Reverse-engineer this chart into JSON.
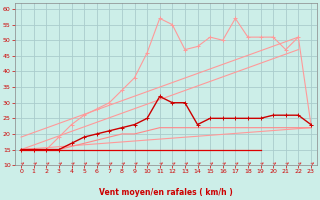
{
  "bg_color": "#cceee8",
  "grid_color": "#aacccc",
  "xlabel": "Vent moyen/en rafales ( km/h )",
  "ylim": [
    10,
    62
  ],
  "xlim": [
    -0.5,
    23.5
  ],
  "yticks": [
    10,
    15,
    20,
    25,
    30,
    35,
    40,
    45,
    50,
    55,
    60
  ],
  "xticks": [
    0,
    1,
    2,
    3,
    4,
    5,
    6,
    7,
    8,
    9,
    10,
    11,
    12,
    13,
    14,
    15,
    16,
    17,
    18,
    19,
    20,
    21,
    22,
    23
  ],
  "line_flat_red": {
    "x": [
      0,
      19
    ],
    "y": [
      15,
      15
    ],
    "color": "#dd0000",
    "lw": 0.9
  },
  "line_diag1": {
    "x": [
      0,
      23
    ],
    "y": [
      15,
      22
    ],
    "color": "#ff9999",
    "lw": 0.8
  },
  "line_diag2": {
    "x": [
      0,
      22
    ],
    "y": [
      15,
      47
    ],
    "color": "#ff9999",
    "lw": 0.8
  },
  "line_diag3": {
    "x": [
      0,
      22
    ],
    "y": [
      19,
      51
    ],
    "color": "#ff9999",
    "lw": 0.8
  },
  "line_jagged_pink": {
    "x": [
      0,
      1,
      2,
      3,
      4,
      5,
      6,
      7,
      8,
      9,
      10,
      11,
      12,
      13,
      14,
      15,
      16,
      17,
      18,
      19,
      20,
      21,
      22,
      23
    ],
    "y": [
      15,
      15,
      15,
      19,
      23,
      26,
      28,
      30,
      34,
      38,
      46,
      57,
      55,
      47,
      48,
      51,
      50,
      57,
      51,
      51,
      51,
      47,
      51,
      23
    ],
    "color": "#ff9999",
    "lw": 0.8,
    "marker": "+"
  },
  "line_med_dark": {
    "x": [
      0,
      1,
      2,
      3,
      4,
      5,
      6,
      7,
      8,
      9,
      10,
      11,
      12,
      13,
      14,
      15,
      16,
      17,
      18,
      19,
      20,
      21,
      22,
      23
    ],
    "y": [
      15,
      15,
      15,
      15,
      17,
      19,
      20,
      21,
      22,
      23,
      25,
      32,
      30,
      30,
      23,
      25,
      25,
      25,
      25,
      25,
      26,
      26,
      26,
      23
    ],
    "color": "#cc0000",
    "lw": 1.0,
    "marker": "+"
  },
  "line_lower_pink": {
    "x": [
      0,
      1,
      2,
      3,
      4,
      5,
      6,
      7,
      8,
      9,
      10,
      11,
      12,
      13,
      14,
      15,
      16,
      17,
      18,
      19,
      20,
      21,
      22,
      23
    ],
    "y": [
      15,
      15,
      15,
      15,
      16,
      17,
      18,
      19,
      20,
      20,
      21,
      22,
      22,
      22,
      22,
      22,
      22,
      22,
      22,
      22,
      22,
      22,
      22,
      22
    ],
    "color": "#ff8888",
    "lw": 0.8
  },
  "arrow_color": "#dd3333",
  "tick_color": "#cc0000",
  "label_color": "#cc0000",
  "tick_fontsize": 4.5,
  "xlabel_fontsize": 5.5
}
